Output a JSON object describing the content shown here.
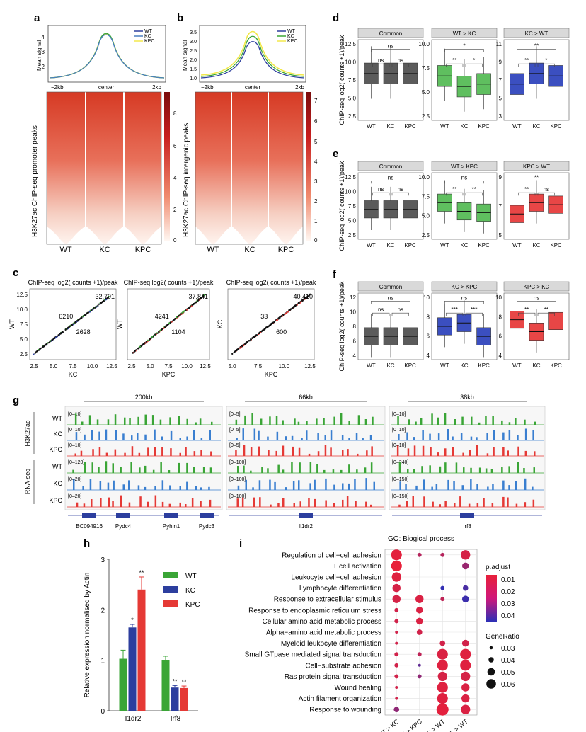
{
  "panel_letters": {
    "a": "a",
    "b": "b",
    "c": "c",
    "d": "d",
    "e": "e",
    "f": "f",
    "g": "g",
    "h": "h",
    "i": "i"
  },
  "legend_wt_kc_kpc": [
    "WT",
    "KC",
    "KPC"
  ],
  "colors": {
    "WT": "#3aa536",
    "KC": "#2c3e9e",
    "KPC": "#e53935",
    "common": "#5a5a5a",
    "KPC_line": "#f2e84b",
    "heat": "#d9301f"
  },
  "profile": {
    "ylabel": "Mean signal",
    "x_ticks": [
      "−2kb",
      "center",
      "2kb"
    ],
    "a_y_ticks": [
      "4",
      "3",
      "2"
    ],
    "b_y_ticks": [
      "3.5",
      "3.0",
      "2.5",
      "2.0",
      "1.5",
      "1.0"
    ]
  },
  "heatmap": {
    "a_ylabel": "H3K27ac ChIP-seq promoter peaks",
    "b_ylabel": "H3K27ac ChIP-seq intergenic peaks",
    "x_labels": [
      "WT",
      "KC",
      "KPC"
    ],
    "a_scale": [
      "8",
      "6",
      "4",
      "2",
      "0"
    ],
    "b_scale": [
      "7",
      "6",
      "5",
      "4",
      "3",
      "2",
      "1",
      "0"
    ]
  },
  "scatter": {
    "title": "ChIP-seq log2( counts +1)/peak",
    "plots": [
      {
        "xlabel": "KC",
        "ylabel": "WT",
        "n_up": "6210",
        "n_down": "2628",
        "n_total": "32,791",
        "x_ticks": [
          "2.5",
          "5.0",
          "7.5",
          "10.0",
          "12.5"
        ],
        "y_ticks": [
          "12.5",
          "10.0",
          "7.5",
          "5.0",
          "2.5"
        ]
      },
      {
        "xlabel": "KPC",
        "ylabel": "WT",
        "n_up": "4241",
        "n_down": "1104",
        "n_total": "37,841",
        "x_ticks": [
          "2.5",
          "5.0",
          "7.5",
          "10.0",
          "12.5"
        ],
        "y_ticks": []
      },
      {
        "xlabel": "KPC",
        "ylabel": "KC",
        "n_up": "33",
        "n_down": "600",
        "n_total": "40,410",
        "x_ticks": [
          "5.0",
          "7.5",
          "10.0",
          "12.5"
        ],
        "y_ticks": []
      }
    ]
  },
  "boxplot": {
    "ylabel": "ChIP-seq log2( counts +1)/peak",
    "x_labels": [
      "WT",
      "KC",
      "KPC"
    ],
    "d": {
      "titles": [
        "Common",
        "WT > KC",
        "KC > WT"
      ],
      "yticks": [
        [
          "12.5",
          "10.0",
          "7.5",
          "5.0",
          "2.5"
        ],
        [
          "10.0",
          "7.5",
          "5.0",
          "2.5"
        ],
        [
          "11",
          "9",
          "7",
          "5",
          "3"
        ]
      ],
      "sig": [
        [
          "ns",
          "ns",
          "ns"
        ],
        [
          "**",
          "*",
          "*"
        ],
        [
          "**",
          "*",
          "**"
        ]
      ]
    },
    "e": {
      "titles": [
        "Common",
        "WT > KPC",
        "KPC > WT"
      ],
      "yticks": [
        [
          "12.5",
          "10.0",
          "7.5",
          "5.0",
          "2.5"
        ],
        [
          "10.0",
          "7.5",
          "5.0",
          "2.5"
        ],
        [
          "9",
          "7",
          "5"
        ]
      ],
      "sig": [
        [
          "ns",
          "ns",
          "ns"
        ],
        [
          "**",
          "**",
          "ns"
        ],
        [
          "**",
          "ns",
          "**"
        ]
      ]
    },
    "f": {
      "titles": [
        "Common",
        "KC > KPC",
        "KPC > KC"
      ],
      "yticks": [
        [
          "12",
          "10",
          "8",
          "6",
          "4"
        ],
        [
          "10",
          "8",
          "6",
          "4"
        ],
        [
          "10",
          "8",
          "6",
          "4"
        ]
      ],
      "sig": [
        [
          "ns",
          "ns",
          "ns"
        ],
        [
          "***",
          "***",
          "ns"
        ],
        [
          "**",
          "**",
          "ns"
        ]
      ]
    }
  },
  "tracks": {
    "side_labels": [
      "H3K27ac",
      "RNA-seq"
    ],
    "row_labels": [
      "WT",
      "KC",
      "KPC",
      "WT",
      "KC",
      "KPC"
    ],
    "loci": [
      {
        "scale": "200kb",
        "ranges": [
          "[0–10]",
          "[0–10]",
          "[0–10]",
          "[0–120]",
          "[0–20]",
          "[0–20]"
        ],
        "genes": [
          "BC094916",
          "Pydc4",
          "Pyhin1",
          "Pydc3"
        ]
      },
      {
        "scale": "66kb",
        "ranges": [
          "[0–5]",
          "[0–5]",
          "[0–5]",
          "[0–100]",
          "[0–100]",
          "[0–100]"
        ],
        "genes": [
          "Il1dr2"
        ]
      },
      {
        "scale": "38kb",
        "ranges": [
          "[0–10]",
          "[0–10]",
          "[0–10]",
          "[0–240]",
          "[0–150]",
          "[0–150]"
        ],
        "genes": [
          "Irf8"
        ]
      }
    ]
  },
  "chart_data": [
    {
      "type": "bar",
      "ylabel": "Relative expression normalised by Actin",
      "categories": [
        "I1dr2",
        "Irf8"
      ],
      "ylim": [
        0,
        3
      ],
      "y_ticks": [
        "3",
        "2",
        "1",
        "0"
      ],
      "series": [
        {
          "name": "WT",
          "values": [
            1.03,
            1.0
          ],
          "errors": [
            0.17,
            0.08
          ],
          "stars": [
            "",
            ""
          ]
        },
        {
          "name": "KC",
          "values": [
            1.65,
            0.46
          ],
          "errors": [
            0.06,
            0.04
          ],
          "stars": [
            "*",
            "**"
          ]
        },
        {
          "name": "KPC",
          "values": [
            2.4,
            0.45
          ],
          "errors": [
            0.25,
            0.04
          ],
          "stars": [
            "**",
            "**"
          ]
        }
      ]
    },
    {
      "type": "scatter",
      "title": "GO: Biogical process",
      "terms": [
        "Regulation of cell−cell adhesion",
        "T cell activation",
        "Leukocyte cell−cell adhesion",
        "Lymphocyte differentiation",
        "Response to extracellular stimulus",
        "Response to endoplasmic reticulum stress",
        "Cellular amino acid metabolic process",
        "Alpha−amino acid metabolic process",
        "Myeloid leukocyte differentiation",
        "Small GTpase mediated signal transduction",
        "Cell−substrate adhesion",
        "Ras protein signal transduction",
        "Wound healing",
        "Actin filament organization",
        "Response to wounding"
      ],
      "comparisons": [
        "WT > KC",
        "WT > KPC",
        "KC > WT",
        "KPC > WT"
      ],
      "legend_color_title": "p.adjust",
      "legend_color_ticks": [
        "0.01",
        "0.02",
        "0.03",
        "0.04"
      ],
      "legend_size_title": "GeneRatio",
      "legend_size_ticks": [
        "0.03",
        "0.04",
        "0.05",
        "0.06"
      ],
      "points": [
        {
          "term": 0,
          "comp": 0,
          "ratio": 0.06,
          "p": 0.002
        },
        {
          "term": 0,
          "comp": 1,
          "ratio": 0.035,
          "p": 0.012
        },
        {
          "term": 0,
          "comp": 2,
          "ratio": 0.035,
          "p": 0.012
        },
        {
          "term": 0,
          "comp": 3,
          "ratio": 0.055,
          "p": 0.005
        },
        {
          "term": 1,
          "comp": 0,
          "ratio": 0.06,
          "p": 0.001
        },
        {
          "term": 1,
          "comp": 3,
          "ratio": 0.045,
          "p": 0.018
        },
        {
          "term": 2,
          "comp": 0,
          "ratio": 0.055,
          "p": 0.003
        },
        {
          "term": 3,
          "comp": 0,
          "ratio": 0.05,
          "p": 0.005
        },
        {
          "term": 3,
          "comp": 2,
          "ratio": 0.035,
          "p": 0.04
        },
        {
          "term": 3,
          "comp": 3,
          "ratio": 0.04,
          "p": 0.035
        },
        {
          "term": 4,
          "comp": 0,
          "ratio": 0.05,
          "p": 0.005
        },
        {
          "term": 4,
          "comp": 1,
          "ratio": 0.05,
          "p": 0.004
        },
        {
          "term": 4,
          "comp": 2,
          "ratio": 0.035,
          "p": 0.01
        },
        {
          "term": 4,
          "comp": 3,
          "ratio": 0.045,
          "p": 0.038
        },
        {
          "term": 5,
          "comp": 0,
          "ratio": 0.035,
          "p": 0.006
        },
        {
          "term": 5,
          "comp": 1,
          "ratio": 0.045,
          "p": 0.004
        },
        {
          "term": 6,
          "comp": 0,
          "ratio": 0.035,
          "p": 0.006
        },
        {
          "term": 6,
          "comp": 1,
          "ratio": 0.045,
          "p": 0.004
        },
        {
          "term": 7,
          "comp": 0,
          "ratio": 0.03,
          "p": 0.006
        },
        {
          "term": 7,
          "comp": 1,
          "ratio": 0.04,
          "p": 0.006
        },
        {
          "term": 8,
          "comp": 0,
          "ratio": 0.03,
          "p": 0.006
        },
        {
          "term": 8,
          "comp": 2,
          "ratio": 0.04,
          "p": 0.006
        },
        {
          "term": 8,
          "comp": 3,
          "ratio": 0.045,
          "p": 0.006
        },
        {
          "term": 9,
          "comp": 0,
          "ratio": 0.035,
          "p": 0.006
        },
        {
          "term": 9,
          "comp": 1,
          "ratio": 0.035,
          "p": 0.01
        },
        {
          "term": 9,
          "comp": 2,
          "ratio": 0.06,
          "p": 0.004
        },
        {
          "term": 9,
          "comp": 3,
          "ratio": 0.06,
          "p": 0.003
        },
        {
          "term": 10,
          "comp": 0,
          "ratio": 0.035,
          "p": 0.006
        },
        {
          "term": 10,
          "comp": 1,
          "ratio": 0.03,
          "p": 0.03
        },
        {
          "term": 10,
          "comp": 2,
          "ratio": 0.06,
          "p": 0.003
        },
        {
          "term": 10,
          "comp": 3,
          "ratio": 0.06,
          "p": 0.003
        },
        {
          "term": 11,
          "comp": 0,
          "ratio": 0.035,
          "p": 0.006
        },
        {
          "term": 11,
          "comp": 1,
          "ratio": 0.035,
          "p": 0.02
        },
        {
          "term": 11,
          "comp": 2,
          "ratio": 0.055,
          "p": 0.005
        },
        {
          "term": 11,
          "comp": 3,
          "ratio": 0.055,
          "p": 0.005
        },
        {
          "term": 12,
          "comp": 0,
          "ratio": 0.03,
          "p": 0.006
        },
        {
          "term": 12,
          "comp": 2,
          "ratio": 0.06,
          "p": 0.003
        },
        {
          "term": 12,
          "comp": 3,
          "ratio": 0.05,
          "p": 0.004
        },
        {
          "term": 13,
          "comp": 0,
          "ratio": 0.03,
          "p": 0.006
        },
        {
          "term": 13,
          "comp": 2,
          "ratio": 0.06,
          "p": 0.003
        },
        {
          "term": 13,
          "comp": 3,
          "ratio": 0.05,
          "p": 0.004
        },
        {
          "term": 14,
          "comp": 0,
          "ratio": 0.04,
          "p": 0.02
        },
        {
          "term": 14,
          "comp": 2,
          "ratio": 0.065,
          "p": 0.002
        },
        {
          "term": 14,
          "comp": 3,
          "ratio": 0.055,
          "p": 0.004
        }
      ]
    }
  ]
}
